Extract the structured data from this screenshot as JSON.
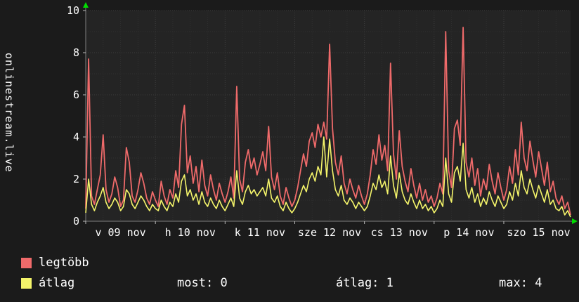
{
  "title_vertical": "onlinestream.live",
  "colors": {
    "background": "#1b1b1b",
    "plot_bg": "#242424",
    "grid_minor": "#2f2f2f",
    "grid_major": "#3d3d3d",
    "axis": "#808080",
    "tick": "#bbbbbb",
    "arrow": "#00dd00",
    "text": "#ffffff",
    "series_max": "#ef6a6a",
    "series_avg": "#f4f46a"
  },
  "chart_data": {
    "type": "line",
    "title": "onlinestream.live",
    "xlabel": "",
    "ylabel": "onlinestream.live",
    "ylim": [
      0,
      10
    ],
    "y_ticks": [
      0,
      2,
      4,
      6,
      8,
      10
    ],
    "x_labels": [
      "v 09 nov",
      "h 10 nov",
      "k 11 nov",
      "sze 12 nov",
      "cs 13 nov",
      "p 14 nov",
      "szo 15 nov"
    ],
    "points_per_day": 24,
    "grid": true,
    "legend_position": "bottom-left",
    "series": [
      {
        "name": "legtöbb",
        "color": "#ef6a6a",
        "values": [
          0.6,
          7.7,
          1.2,
          0.8,
          1.5,
          2.2,
          4.1,
          1.5,
          0.9,
          1.3,
          2.1,
          1.6,
          0.7,
          1.0,
          3.5,
          2.8,
          1.2,
          0.9,
          1.5,
          2.3,
          1.8,
          1.1,
          0.8,
          1.4,
          1.0,
          0.7,
          1.9,
          1.2,
          0.8,
          1.5,
          1.1,
          2.4,
          1.6,
          4.6,
          5.5,
          2.3,
          3.1,
          1.8,
          2.6,
          1.4,
          2.9,
          1.7,
          1.2,
          2.2,
          1.5,
          1.0,
          1.8,
          1.3,
          0.9,
          1.4,
          2.1,
          1.1,
          6.4,
          2.0,
          1.4,
          2.8,
          3.4,
          2.5,
          3.0,
          2.2,
          2.7,
          3.3,
          2.4,
          4.5,
          2.1,
          1.5,
          2.3,
          1.2,
          0.8,
          1.6,
          1.1,
          0.7,
          1.0,
          1.6,
          2.4,
          3.2,
          2.6,
          3.8,
          4.2,
          3.5,
          4.6,
          4.0,
          4.7,
          3.9,
          8.4,
          4.4,
          2.8,
          2.2,
          3.1,
          1.8,
          1.3,
          2.0,
          1.5,
          1.1,
          1.7,
          1.2,
          0.8,
          1.3,
          2.2,
          3.4,
          2.7,
          4.1,
          2.9,
          3.6,
          2.4,
          7.5,
          3.2,
          2.0,
          4.3,
          2.6,
          1.9,
          1.4,
          2.5,
          1.7,
          1.1,
          1.8,
          1.0,
          1.5,
          0.9,
          1.2,
          0.7,
          1.1,
          1.8,
          1.3,
          9.0,
          2.4,
          1.6,
          4.4,
          4.8,
          3.6,
          9.2,
          2.8,
          2.1,
          3.0,
          1.7,
          2.5,
          1.2,
          2.0,
          1.5,
          2.7,
          1.9,
          1.3,
          2.3,
          1.6,
          1.0,
          1.5,
          2.6,
          1.8,
          3.4,
          2.2,
          4.7,
          3.0,
          2.4,
          3.8,
          2.9,
          2.1,
          3.3,
          2.5,
          1.7,
          2.8,
          1.4,
          1.9,
          1.1,
          0.8,
          1.2,
          0.6,
          0.9,
          0.3
        ]
      },
      {
        "name": "átlag",
        "color": "#f4f46a",
        "values": [
          0.4,
          2.0,
          0.8,
          0.5,
          0.9,
          1.2,
          1.6,
          0.9,
          0.6,
          0.8,
          1.1,
          0.9,
          0.5,
          0.7,
          1.5,
          1.3,
          0.8,
          0.6,
          0.9,
          1.2,
          1.0,
          0.7,
          0.5,
          0.8,
          0.6,
          0.5,
          1.0,
          0.7,
          0.5,
          0.9,
          0.7,
          1.3,
          0.9,
          1.9,
          2.2,
          1.2,
          1.5,
          1.0,
          1.3,
          0.8,
          1.4,
          0.9,
          0.7,
          1.1,
          0.8,
          0.6,
          1.0,
          0.7,
          0.5,
          0.8,
          1.1,
          0.7,
          2.4,
          1.1,
          0.8,
          1.4,
          1.7,
          1.3,
          1.5,
          1.2,
          1.4,
          1.6,
          1.2,
          2.0,
          1.1,
          0.9,
          1.2,
          0.7,
          0.5,
          0.9,
          0.6,
          0.4,
          0.6,
          0.9,
          1.3,
          1.7,
          1.4,
          2.0,
          2.3,
          1.9,
          2.6,
          2.2,
          4.0,
          2.1,
          3.9,
          2.4,
          1.5,
          1.2,
          1.7,
          1.0,
          0.8,
          1.1,
          0.9,
          0.6,
          0.9,
          0.7,
          0.5,
          0.7,
          1.2,
          1.8,
          1.5,
          2.2,
          1.6,
          1.9,
          1.3,
          3.1,
          1.7,
          1.1,
          2.3,
          1.4,
          1.0,
          0.8,
          1.3,
          0.9,
          0.6,
          1.0,
          0.6,
          0.8,
          0.5,
          0.7,
          0.4,
          0.6,
          1.0,
          0.7,
          3.0,
          1.3,
          0.9,
          2.3,
          2.6,
          1.9,
          3.7,
          1.5,
          1.1,
          1.6,
          0.9,
          1.3,
          0.7,
          1.1,
          0.8,
          1.4,
          1.0,
          0.7,
          1.2,
          0.9,
          0.6,
          0.8,
          1.4,
          1.0,
          1.8,
          1.2,
          2.4,
          1.6,
          1.3,
          2.0,
          1.5,
          1.1,
          1.7,
          1.3,
          0.9,
          1.5,
          0.8,
          1.0,
          0.6,
          0.5,
          0.7,
          0.3,
          0.5,
          0.2
        ]
      }
    ]
  },
  "legend": [
    {
      "label": "legtöbb",
      "color": "#ef6a6a"
    },
    {
      "label": "átlag",
      "color": "#f4f46a"
    }
  ],
  "stats": [
    {
      "label": "most:",
      "value": "0"
    },
    {
      "label": "átlag:",
      "value": "1"
    },
    {
      "label": "max:",
      "value": "4"
    }
  ]
}
